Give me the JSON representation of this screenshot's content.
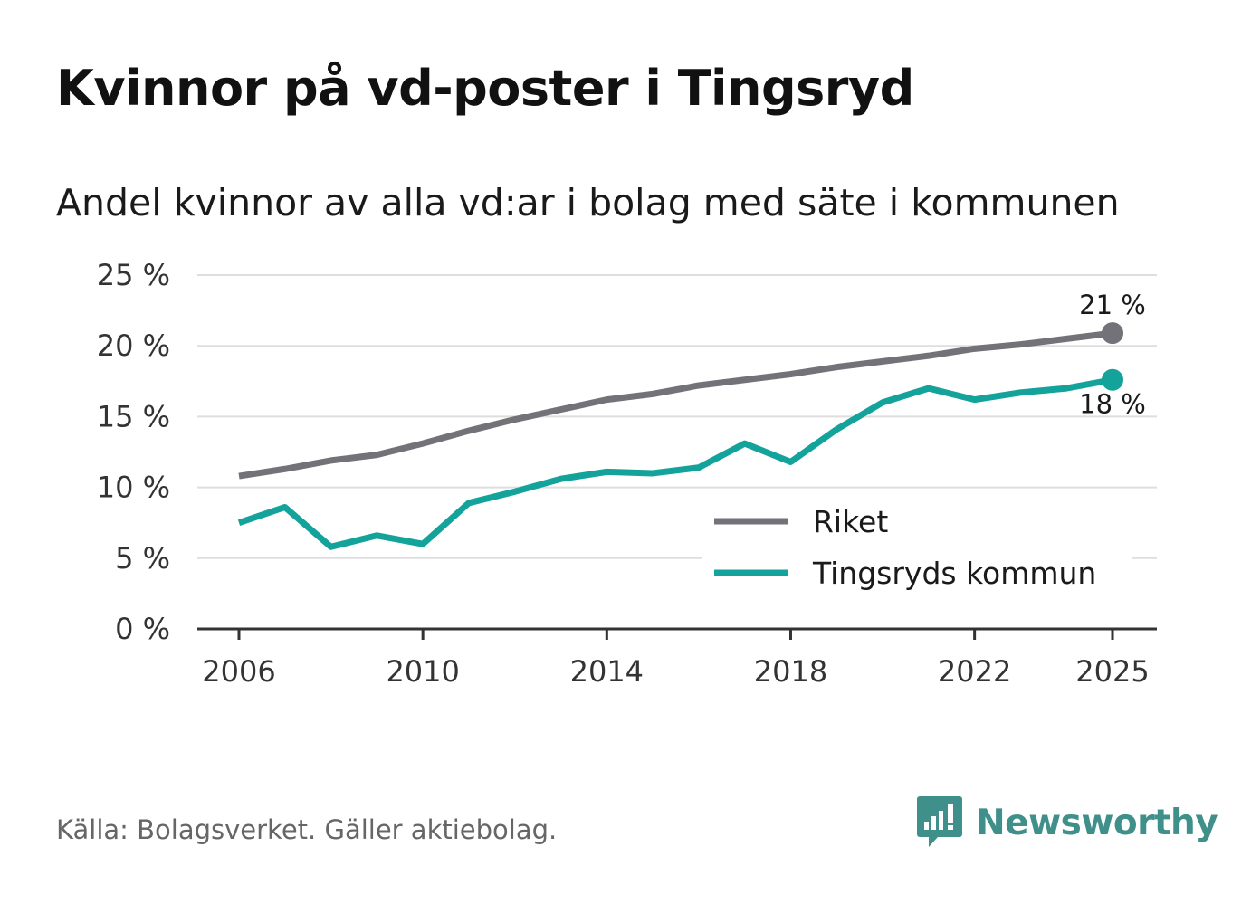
{
  "header": {
    "title": "Kvinnor på vd-poster i Tingsryd",
    "subtitle": "Andel kvinnor av alla vd:ar i bolag med säte i kommunen"
  },
  "footer": {
    "source": "Källa: Bolagsverket. Gäller aktiebolag.",
    "brand": "Newsworthy"
  },
  "colors": {
    "riket": "#737278",
    "tingsryd": "#13a39b",
    "grid": "#dedede",
    "axis": "#333333",
    "brand": "#3f8f8a"
  },
  "chart_data": {
    "type": "line",
    "title": "Kvinnor på vd-poster i Tingsryd",
    "subtitle": "Andel kvinnor av alla vd:ar i bolag med säte i kommunen",
    "xlabel": "",
    "ylabel": "",
    "x": [
      2006,
      2007,
      2008,
      2009,
      2010,
      2011,
      2012,
      2013,
      2014,
      2015,
      2016,
      2017,
      2018,
      2019,
      2020,
      2021,
      2022,
      2023,
      2024,
      2025
    ],
    "xticks": [
      2006,
      2010,
      2014,
      2018,
      2022,
      2025
    ],
    "xtick_labels": [
      "2006",
      "2010",
      "2014",
      "2018",
      "2022",
      "2025"
    ],
    "ylim": [
      0,
      25
    ],
    "yticks": [
      0,
      5,
      10,
      15,
      20,
      25
    ],
    "ytick_labels": [
      "0 %",
      "5 %",
      "10 %",
      "15 %",
      "20 %",
      "25 %"
    ],
    "grid": true,
    "legend_position": "center-right",
    "series": [
      {
        "name": "Riket",
        "color": "#737278",
        "values": [
          10.8,
          11.3,
          11.9,
          12.3,
          13.1,
          14.0,
          14.8,
          15.5,
          16.2,
          16.6,
          17.2,
          17.6,
          18.0,
          18.5,
          18.9,
          19.3,
          19.8,
          20.1,
          20.5,
          20.9
        ],
        "end_label": "21 %"
      },
      {
        "name": "Tingsryds kommun",
        "color": "#13a39b",
        "values": [
          7.5,
          8.6,
          5.8,
          6.6,
          6.0,
          8.9,
          9.7,
          10.6,
          11.1,
          11.0,
          11.4,
          13.1,
          11.8,
          14.1,
          16.0,
          17.0,
          16.2,
          16.7,
          17.0,
          17.6
        ],
        "end_label": "18 %"
      }
    ]
  }
}
